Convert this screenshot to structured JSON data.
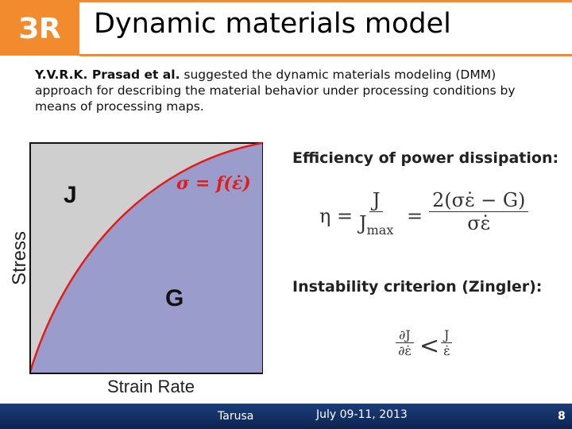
{
  "header": {
    "title": "Dynamic materials model"
  },
  "intro": {
    "authors": "Y.V.R.K. Prasad et al.",
    "text": " suggested the dynamic materials modeling (DMM) approach for describing the material behavior under processing conditions by means of processing maps."
  },
  "diagram": {
    "y_label": "Stress",
    "x_label": "Strain Rate",
    "region_top": "J",
    "region_bottom": "G",
    "curve_label": "σ = f(ε̇)"
  },
  "efficiency": {
    "heading": "Efficiency of power dissipation:",
    "lhs": "η =",
    "frac1_num": "J",
    "frac1_den": "J",
    "frac1_den_sub": "max",
    "equals": "=",
    "frac2_num": "2(σε̇ − G)",
    "frac2_den": "σε̇"
  },
  "instability": {
    "heading": "Instability criterion (Zingler):",
    "lhs_num": "∂J",
    "lhs_den": "∂ε̇",
    "relation": "<",
    "rhs_num": "J",
    "rhs_den": "ε̇"
  },
  "footer": {
    "place": "Tarusa",
    "date": "July 09-11, 2013",
    "page": "8"
  }
}
